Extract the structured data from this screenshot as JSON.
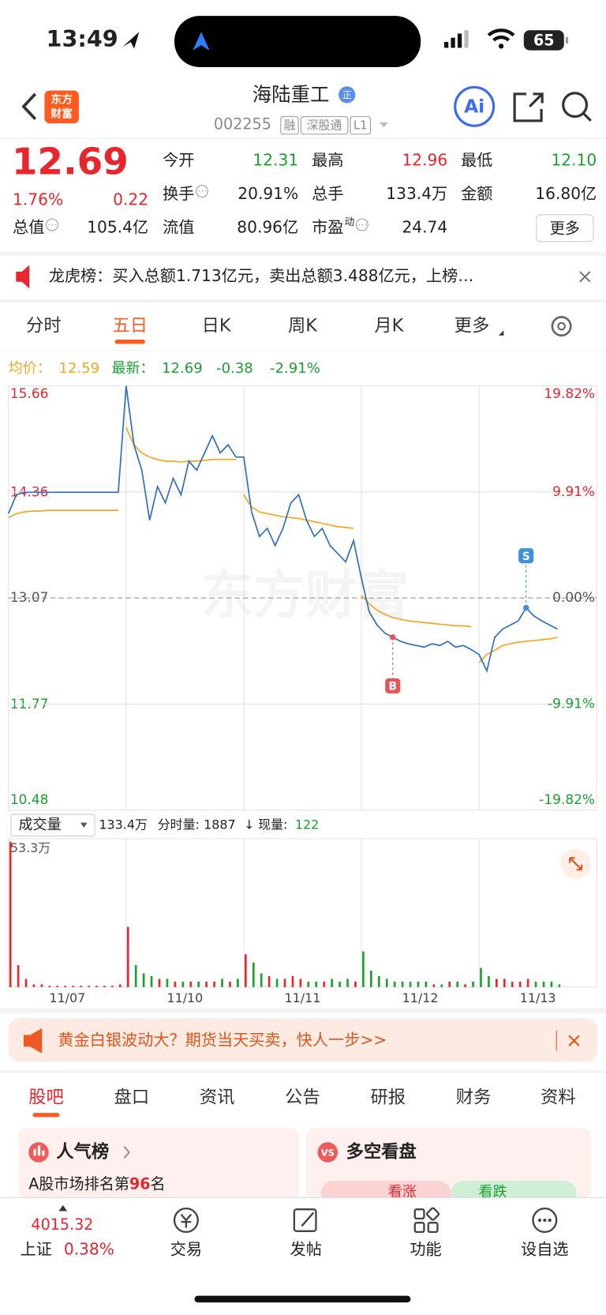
{
  "status_bar": {
    "time": "13:49",
    "battery": "65"
  },
  "header": {
    "logo": [
      "东方",
      "财富"
    ],
    "name": "海陆重工",
    "badge": "正",
    "code": "002255",
    "tags": [
      "融",
      "深股通",
      "L1"
    ],
    "ai": "Ai"
  },
  "quote": {
    "price": "12.69",
    "change_pct": "1.76%",
    "change": "0.22",
    "stats": [
      {
        "label": "今开",
        "value": "12.31",
        "color": "#1aa12f"
      },
      {
        "label": "最高",
        "value": "12.96",
        "color": "#e8262d"
      },
      {
        "label": "最低",
        "value": "12.10",
        "color": "#1aa12f"
      },
      {
        "label": "换手",
        "value": "20.91%",
        "info": true
      },
      {
        "label": "总手",
        "value": "133.4万"
      },
      {
        "label": "金额",
        "value": "16.80亿"
      },
      {
        "label": "总值",
        "value": "105.4亿",
        "info": true
      },
      {
        "label": "流值",
        "value": "80.96亿"
      },
      {
        "label": "市盈",
        "sup": "动",
        "value": "24.74",
        "info": true
      }
    ],
    "more": "更多"
  },
  "notice": "龙虎榜：买入总额1.713亿元，卖出总额3.488亿元，上榜…",
  "tabs": {
    "items": [
      "分时",
      "五日",
      "日K",
      "周K",
      "月K",
      "更多"
    ],
    "active": 1
  },
  "legend": {
    "avg_label": "均价：",
    "avg": "12.59",
    "latest_label": "最新：",
    "latest": "12.69",
    "change": "-0.38",
    "change_pct": "-2.91%"
  },
  "chart": {
    "watermark": "东方财富",
    "ylim": [
      10.48,
      15.66
    ],
    "yticks": [
      15.66,
      14.36,
      13.07,
      11.77,
      10.48
    ],
    "y2lim": [
      -19.82,
      19.82
    ],
    "y2ticks": [
      {
        "value": 19.82,
        "label": "19.82%"
      },
      {
        "value": 9.91,
        "label": "9.91%"
      },
      {
        "value": 0,
        "label": "0.00%"
      },
      {
        "value": -9.91,
        "label": "-9.91%"
      },
      {
        "value": -19.82,
        "label": "-19.82%"
      }
    ],
    "days": [
      "11/07",
      "11/10",
      "11/11",
      "11/12",
      "11/13"
    ],
    "price_color": "#2f6fc0",
    "average_color": "#f5a623",
    "price": [
      [
        14.1,
        14.33,
        14.36,
        14.36,
        14.36,
        14.36,
        14.36,
        14.36,
        14.36,
        14.36,
        14.36,
        14.36,
        14.36,
        14.36,
        14.36
      ],
      [
        15.66,
        14.94,
        14.63,
        14.02,
        14.43,
        14.23,
        14.53,
        14.33,
        14.74,
        14.63,
        14.84,
        15.05,
        14.84,
        14.94,
        14.79
      ],
      [
        14.79,
        14.12,
        13.82,
        13.92,
        13.71,
        13.92,
        14.23,
        14.33,
        14.02,
        13.82,
        13.92,
        13.71,
        13.61,
        13.51,
        13.77
      ],
      [
        13.31,
        12.9,
        12.74,
        12.64,
        12.59,
        12.54,
        12.51,
        12.49,
        12.47,
        12.51,
        12.49,
        12.54,
        12.47,
        12.49,
        12.44
      ],
      [
        12.38,
        12.18,
        12.59,
        12.69,
        12.74,
        12.79,
        12.95,
        12.85,
        12.79,
        12.74,
        12.69
      ]
    ],
    "average": [
      [
        14.05,
        14.1,
        14.12,
        14.13,
        14.13,
        14.14,
        14.14,
        14.14,
        14.14,
        14.14,
        14.14,
        14.14,
        14.14,
        14.14,
        14.14
      ],
      [
        15.15,
        14.94,
        14.84,
        14.79,
        14.76,
        14.74,
        14.74,
        14.73,
        14.74,
        14.74,
        14.75,
        14.76,
        14.76,
        14.76,
        14.76
      ],
      [
        14.33,
        14.18,
        14.12,
        14.1,
        14.08,
        14.06,
        14.05,
        14.04,
        14.02,
        14,
        13.98,
        13.96,
        13.94,
        13.93,
        13.92
      ],
      [
        13.1,
        13,
        12.92,
        12.87,
        12.83,
        12.81,
        12.79,
        12.78,
        12.77,
        12.76,
        12.75,
        12.74,
        12.73,
        12.73,
        12.72
      ],
      [
        12.28,
        12.38,
        12.43,
        12.49,
        12.51,
        12.53,
        12.54,
        12.55,
        12.56,
        12.57,
        12.59
      ]
    ],
    "trades": [
      {
        "label": "B",
        "day": 3,
        "point": 4,
        "color": "#e8545a"
      },
      {
        "label": "S",
        "day": 4,
        "point": 6,
        "color": "#3d8fe0"
      }
    ]
  },
  "volume": {
    "selector": "成交量",
    "total": "133.4万",
    "tick_label": "分时量:",
    "tick_value": "1887",
    "arrow": "↓",
    "current_label": "现量:",
    "current": "122",
    "ylim": [
      0,
      53.3
    ],
    "yticks": [
      {
        "value": 53.3,
        "label": "53.3万"
      }
    ],
    "values": [
      [
        53,
        8,
        3,
        1,
        1,
        0.5,
        0.5,
        0.5,
        0.5,
        0.5,
        0.5,
        0.5,
        0.5,
        0.5,
        1
      ],
      [
        22,
        8,
        5,
        4,
        3,
        3,
        2,
        2,
        2,
        2,
        2,
        2,
        3,
        2,
        3
      ],
      [
        12,
        9,
        5,
        4,
        3,
        3,
        4,
        3,
        2,
        2,
        2,
        3,
        2,
        3,
        2
      ],
      [
        13,
        6,
        4,
        3,
        2,
        2,
        2,
        2,
        2,
        1,
        1,
        2,
        2,
        1,
        2
      ],
      [
        7,
        4,
        3,
        3,
        2,
        2,
        3,
        2,
        2,
        2,
        1
      ]
    ]
  },
  "ad": "黄金白银波动大？期货当天买卖，快人一步>>",
  "bottom_tabs": {
    "items": [
      "股吧",
      "盘口",
      "资讯",
      "公告",
      "研报",
      "财务",
      "资料"
    ],
    "active": 0
  },
  "cards": {
    "popularity": {
      "title": "人气榜",
      "rank_prefix": "A股市场排名第",
      "rank": "96",
      "rank_suffix": "名"
    },
    "debate": {
      "title": "多空看盘",
      "bull": "看涨",
      "bear": "看跌"
    }
  },
  "nav": {
    "index_value": "4015.32",
    "index_name": "上证",
    "index_change": "0.38%",
    "items": [
      "交易",
      "发帖",
      "功能",
      "设自选"
    ]
  }
}
